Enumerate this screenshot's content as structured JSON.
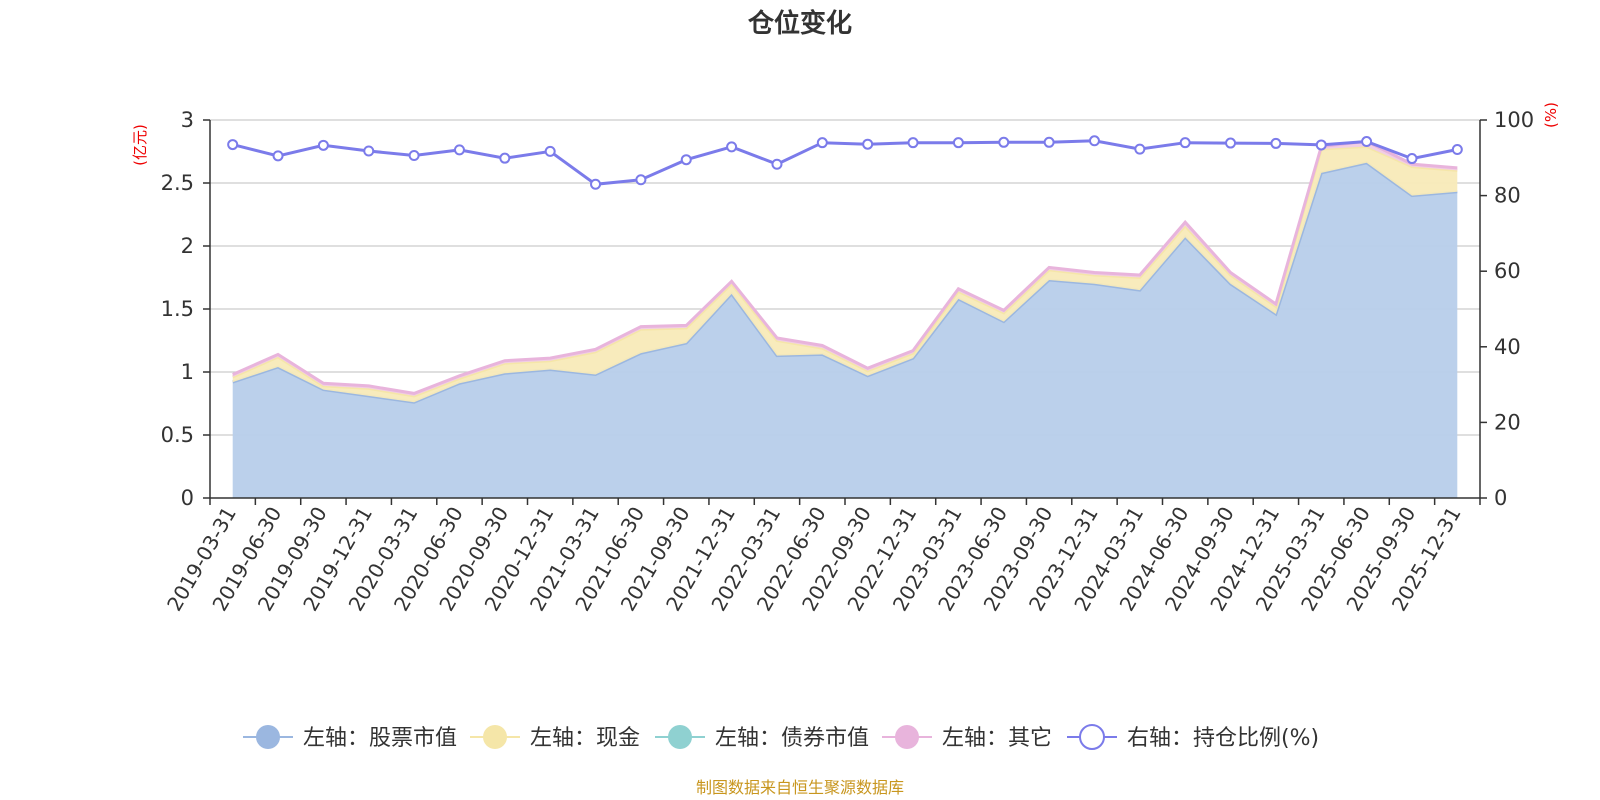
{
  "chart_data": {
    "type": "area",
    "title": "仓位变化",
    "source_note": "制图数据来自恒生聚源数据库",
    "left_axis": {
      "unit": "(亿元)",
      "ylim": [
        0,
        3
      ],
      "ticks": [
        "0",
        "0.5",
        "1",
        "1.5",
        "2",
        "2.5",
        "3"
      ]
    },
    "right_axis": {
      "unit": "(%)",
      "ylim": [
        0,
        100
      ],
      "ticks": [
        "0",
        "20",
        "40",
        "60",
        "80",
        "100"
      ]
    },
    "grid": true,
    "legend_position": "bottom",
    "x": [
      "2019-03-31",
      "2019-06-30",
      "2019-09-30",
      "2019-12-31",
      "2020-03-31",
      "2020-06-30",
      "2020-09-30",
      "2020-12-31",
      "2021-03-31",
      "2021-06-30",
      "2021-09-30",
      "2021-12-31",
      "2022-03-31",
      "2022-06-30",
      "2022-09-30",
      "2022-12-31",
      "2023-03-31",
      "2023-06-30",
      "2023-09-30",
      "2023-12-31",
      "2024-03-31",
      "2024-06-30",
      "2024-09-30",
      "2024-12-31",
      "2025-03-31",
      "2025-06-30",
      "2025-09-30",
      "2025-12-31"
    ],
    "series": [
      {
        "name": "左轴：股票市值",
        "axis": "left",
        "color": "#9bb7e0",
        "fill": "#b7cdea",
        "values": [
          0.92,
          1.04,
          0.86,
          0.81,
          0.76,
          0.91,
          0.99,
          1.02,
          0.98,
          1.15,
          1.23,
          1.62,
          1.13,
          1.14,
          0.97,
          1.11,
          1.58,
          1.4,
          1.73,
          1.7,
          1.65,
          2.07,
          1.7,
          1.46,
          2.58,
          2.66,
          2.4,
          2.43
        ]
      },
      {
        "name": "左轴：现金",
        "axis": "left",
        "color": "#f5e6a8",
        "fill": "#f8eab8",
        "values": [
          0.04,
          0.08,
          0.03,
          0.06,
          0.05,
          0.04,
          0.08,
          0.07,
          0.18,
          0.19,
          0.12,
          0.08,
          0.12,
          0.05,
          0.04,
          0.04,
          0.06,
          0.07,
          0.08,
          0.07,
          0.1,
          0.09,
          0.07,
          0.06,
          0.19,
          0.13,
          0.23,
          0.17
        ]
      },
      {
        "name": "左轴：债券市值",
        "axis": "left",
        "color": "#8fd1d1",
        "fill": "#a8dcdc",
        "values": [
          0,
          0,
          0,
          0,
          0,
          0,
          0,
          0,
          0,
          0,
          0,
          0,
          0,
          0,
          0,
          0,
          0,
          0,
          0,
          0,
          0,
          0,
          0,
          0,
          0,
          0,
          0,
          0
        ]
      },
      {
        "name": "左轴：其它",
        "axis": "left",
        "color": "#e8b4dc",
        "fill": "#f0cce6",
        "values": [
          0.02,
          0.02,
          0.02,
          0.02,
          0.02,
          0.02,
          0.02,
          0.02,
          0.02,
          0.02,
          0.02,
          0.02,
          0.02,
          0.02,
          0.02,
          0.02,
          0.02,
          0.02,
          0.02,
          0.02,
          0.02,
          0.03,
          0.02,
          0.02,
          0.02,
          0.04,
          0.02,
          0.02
        ]
      },
      {
        "name": "右轴：持仓比例(%)",
        "axis": "right",
        "color": "#7b7bea",
        "fill": "#ffffff",
        "values": [
          93.5,
          90.5,
          93.3,
          91.8,
          90.6,
          92.1,
          89.9,
          91.7,
          83.0,
          84.2,
          89.5,
          92.9,
          88.3,
          94.0,
          93.6,
          94.0,
          94.0,
          94.1,
          94.1,
          94.5,
          92.3,
          94.0,
          93.9,
          93.8,
          93.4,
          94.3,
          89.8,
          92.2
        ]
      }
    ]
  }
}
